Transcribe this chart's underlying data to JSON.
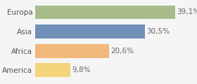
{
  "categories": [
    "America",
    "Africa",
    "Asia",
    "Europa"
  ],
  "values": [
    9.8,
    20.6,
    30.5,
    39.1
  ],
  "labels": [
    "9,8%",
    "20,6%",
    "30,5%",
    "39,1%"
  ],
  "bar_colors": [
    "#f5d57a",
    "#f0b87a",
    "#7090b8",
    "#a8bc8a"
  ],
  "background_color": "#f5f5f5",
  "xlim": [
    0,
    44
  ],
  "label_fontsize": 7.5,
  "tick_fontsize": 7.5,
  "bar_height": 0.72
}
